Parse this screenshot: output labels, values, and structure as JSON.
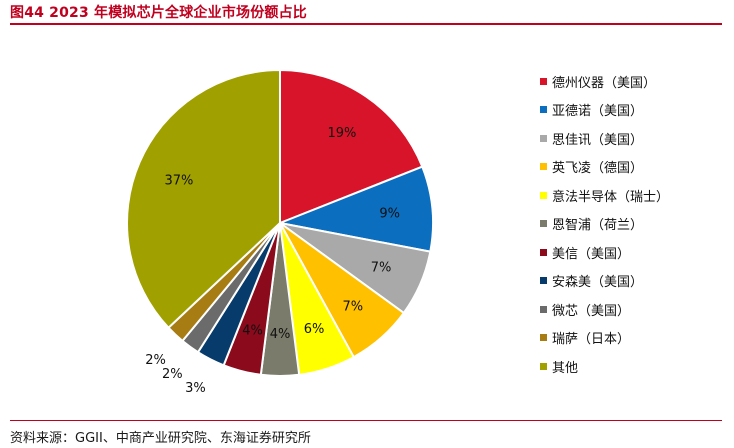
{
  "figure": {
    "title": "图44  2023 年模拟芯片全球企业市场份额占比",
    "source": "资料来源：GGII、中商产业研究院、东海证券研究所"
  },
  "chart_data": {
    "type": "pie",
    "title": "图44  2023 年模拟芯片全球企业市场份额占比",
    "unit": "%",
    "legend_position": "right",
    "start": "12 o'clock, clockwise",
    "slices": [
      {
        "label": "德州仪器（美国）",
        "value": 19,
        "value_label": "19%",
        "color": "#d7142a"
      },
      {
        "label": "亚德诺（美国）",
        "value": 9,
        "value_label": "9%",
        "color": "#0c6ebf"
      },
      {
        "label": "思佳讯（美国）",
        "value": 7,
        "value_label": "7%",
        "color": "#a9a9a9"
      },
      {
        "label": "英飞凌（德国）",
        "value": 7,
        "value_label": "7%",
        "color": "#ffc000"
      },
      {
        "label": "意法半导体（瑞士）",
        "value": 6,
        "value_label": "6%",
        "color": "#ffff00"
      },
      {
        "label": "恩智浦（荷兰）",
        "value": 4,
        "value_label": "4%",
        "color": "#7b7b6b"
      },
      {
        "label": "美信（美国）",
        "value": 4,
        "value_label": "4%",
        "color": "#8b0a1c"
      },
      {
        "label": "安森美（美国）",
        "value": 3,
        "value_label": "3%",
        "color": "#073b6b"
      },
      {
        "label": "微芯（美国）",
        "value": 2,
        "value_label": "2%",
        "color": "#6b6b6b"
      },
      {
        "label": "瑞萨（日本）",
        "value": 2,
        "value_label": "2%",
        "color": "#a77c12"
      },
      {
        "label": "其他",
        "value": 37,
        "value_label": "37%",
        "color": "#a0a000"
      }
    ]
  }
}
